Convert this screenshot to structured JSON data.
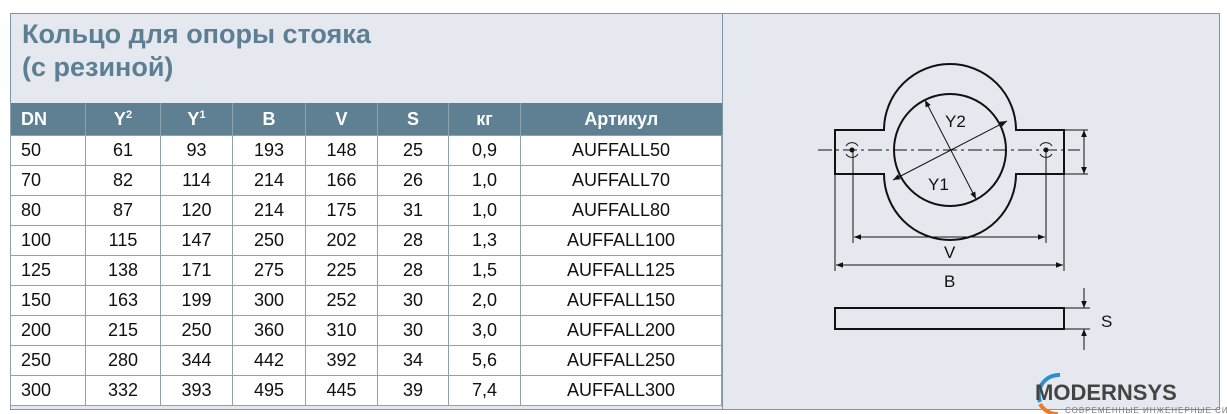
{
  "title": {
    "line1": "Кольцо для опоры стояка",
    "line2": "(с резиной)"
  },
  "table": {
    "headers": [
      {
        "base": "DN",
        "sup": ""
      },
      {
        "base": "Y",
        "sup": "2"
      },
      {
        "base": "Y",
        "sup": "1"
      },
      {
        "base": "B",
        "sup": ""
      },
      {
        "base": "V",
        "sup": ""
      },
      {
        "base": "S",
        "sup": ""
      },
      {
        "base": "кг",
        "sup": ""
      },
      {
        "base": "Артикул",
        "sup": ""
      }
    ],
    "rows": [
      [
        "50",
        "61",
        "93",
        "193",
        "148",
        "25",
        "0,9",
        "AUFFALL50"
      ],
      [
        "70",
        "82",
        "114",
        "214",
        "166",
        "26",
        "1,0",
        "AUFFALL70"
      ],
      [
        "80",
        "87",
        "120",
        "214",
        "175",
        "31",
        "1,0",
        "AUFFALL80"
      ],
      [
        "100",
        "115",
        "147",
        "250",
        "202",
        "28",
        "1,3",
        "AUFFALL100"
      ],
      [
        "125",
        "138",
        "171",
        "275",
        "225",
        "28",
        "1,5",
        "AUFFALL125"
      ],
      [
        "150",
        "163",
        "199",
        "300",
        "252",
        "30",
        "2,0",
        "AUFFALL150"
      ],
      [
        "200",
        "215",
        "250",
        "360",
        "310",
        "30",
        "3,0",
        "AUFFALL200"
      ],
      [
        "250",
        "280",
        "344",
        "442",
        "392",
        "34",
        "5,6",
        "AUFFALL250"
      ],
      [
        "300",
        "332",
        "393",
        "495",
        "445",
        "39",
        "7,4",
        "AUFFALL300"
      ]
    ]
  },
  "drawing": {
    "y2": "Y2",
    "y1": "Y1",
    "v": "V",
    "b": "B",
    "s": "S"
  },
  "watermark": {
    "brand": "MODERNSYS",
    "tagline": "СОВРЕМЕННЫЕ ИНЖЕНЕРНЫЕ СИСТЕМЫ"
  },
  "colors": {
    "accent": "#5f7f92",
    "title": "#5d7f93",
    "panel": "#e5e9ef"
  }
}
